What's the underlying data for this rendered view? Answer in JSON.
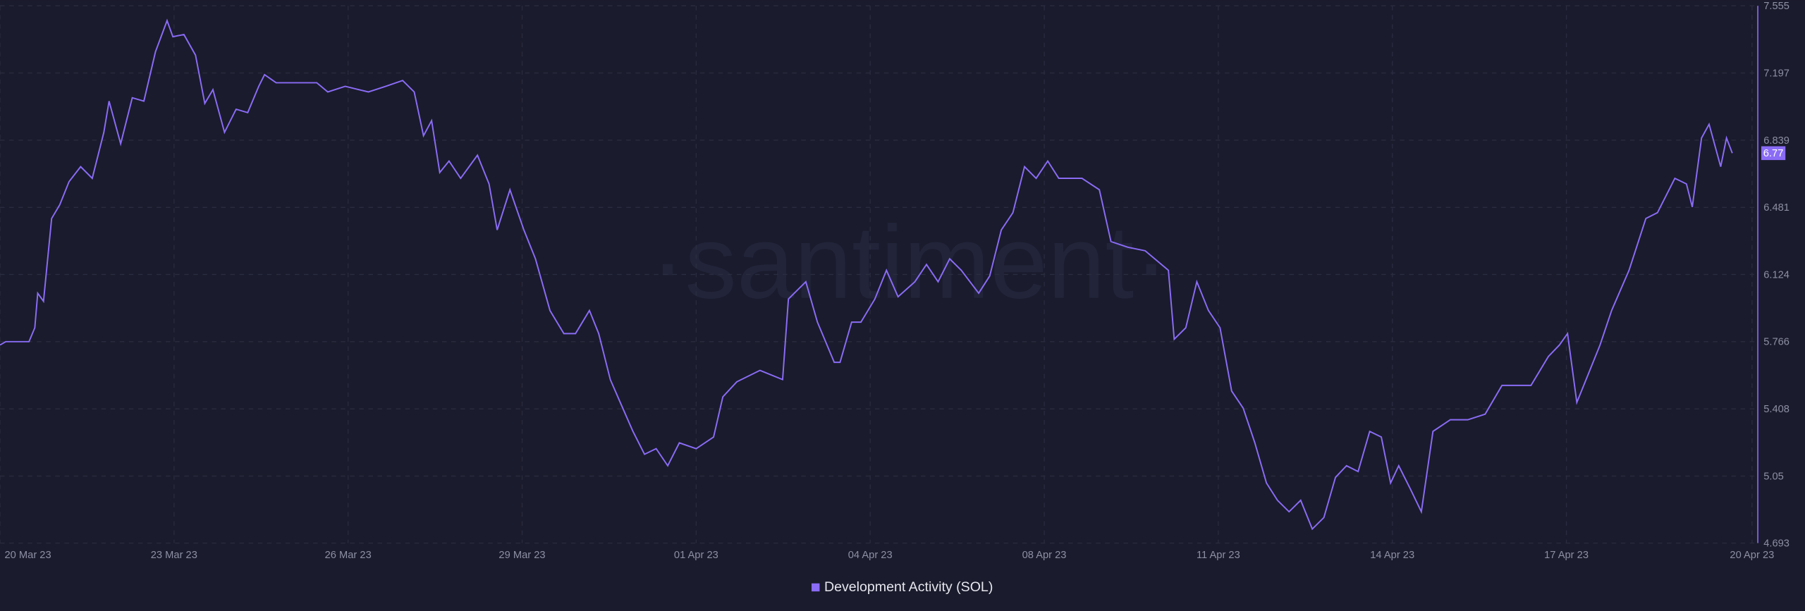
{
  "chart_data": {
    "type": "line",
    "watermark": "·santiment·",
    "x": [
      0,
      0.1,
      0.5,
      0.6,
      0.65,
      0.75,
      0.89,
      1.03,
      1.19,
      1.39,
      1.59,
      1.79,
      1.88,
      2.08,
      2.28,
      2.48,
      2.68,
      2.88,
      2.98,
      3.17,
      3.37,
      3.53,
      3.67,
      3.87,
      4.07,
      4.27,
      4.46,
      4.56,
      4.76,
      4.96,
      5.26,
      5.46,
      5.65,
      5.95,
      6.35,
      6.65,
      6.94,
      7.14,
      7.3,
      7.44,
      7.58,
      7.74,
      7.94,
      8.23,
      8.43,
      8.57,
      8.79,
      9.03,
      9.23,
      9.48,
      9.72,
      9.92,
      10.16,
      10.32,
      10.52,
      10.71,
      10.91,
      11.11,
      11.31,
      11.51,
      11.71,
      12.0,
      12.3,
      12.46,
      12.7,
      13.1,
      13.49,
      13.59,
      13.89,
      14.09,
      14.38,
      14.48,
      14.68,
      14.84,
      15.08,
      15.28,
      15.48,
      15.77,
      15.97,
      16.17,
      16.37,
      16.57,
      16.87,
      17.06,
      17.26,
      17.46,
      17.66,
      17.86,
      18.06,
      18.25,
      18.65,
      18.95,
      19.15,
      19.44,
      19.74,
      20.14,
      20.24,
      20.44,
      20.63,
      20.83,
      21.03,
      21.23,
      21.43,
      21.63,
      21.83,
      22.02,
      22.22,
      22.42,
      22.62,
      22.82,
      23.02,
      23.21,
      23.41,
      23.61,
      23.81,
      23.97,
      24.11,
      24.31,
      24.5,
      24.7,
      25.0,
      25.3,
      25.6,
      25.89,
      26.39,
      26.69,
      26.88,
      27.02,
      27.18,
      27.38,
      27.58,
      27.78,
      28.08,
      28.37,
      28.57,
      28.87,
      29.07,
      29.17,
      29.33,
      29.46,
      29.66,
      29.76,
      29.86
    ],
    "series": [
      {
        "name": "Development Activity (SOL)",
        "color": "#8a6cf6",
        "values": [
          5.748,
          5.766,
          5.766,
          5.84,
          6.024,
          5.981,
          6.422,
          6.495,
          6.618,
          6.698,
          6.636,
          6.881,
          7.047,
          6.82,
          7.065,
          7.047,
          7.31,
          7.476,
          7.39,
          7.402,
          7.292,
          7.035,
          7.108,
          6.881,
          7.004,
          6.986,
          7.126,
          7.188,
          7.145,
          7.145,
          7.145,
          7.145,
          7.096,
          7.126,
          7.096,
          7.126,
          7.157,
          7.096,
          6.863,
          6.943,
          6.667,
          6.728,
          6.636,
          6.759,
          6.606,
          6.361,
          6.575,
          6.361,
          6.207,
          5.932,
          5.809,
          5.809,
          5.932,
          5.809,
          5.564,
          5.429,
          5.288,
          5.166,
          5.196,
          5.105,
          5.227,
          5.196,
          5.258,
          5.472,
          5.552,
          5.613,
          5.564,
          5.993,
          6.085,
          5.87,
          5.656,
          5.656,
          5.87,
          5.87,
          5.993,
          6.146,
          6.005,
          6.085,
          6.177,
          6.085,
          6.207,
          6.146,
          6.024,
          6.116,
          6.361,
          6.453,
          6.698,
          6.636,
          6.728,
          6.636,
          6.636,
          6.575,
          6.299,
          6.269,
          6.25,
          6.146,
          5.779,
          5.84,
          6.085,
          5.932,
          5.84,
          5.503,
          5.411,
          5.227,
          5.013,
          4.921,
          4.86,
          4.921,
          4.768,
          4.829,
          5.043,
          5.105,
          5.074,
          5.288,
          5.258,
          5.013,
          5.105,
          4.982,
          4.86,
          5.288,
          5.35,
          5.35,
          5.38,
          5.533,
          5.533,
          5.687,
          5.748,
          5.809,
          5.442,
          5.595,
          5.748,
          5.932,
          6.146,
          6.422,
          6.453,
          6.636,
          6.606,
          6.483,
          6.851,
          6.924,
          6.698,
          6.851,
          6.77
        ]
      }
    ],
    "last_value_label": "6.77",
    "xlim": [
      0,
      30.26
    ],
    "xticks": [
      {
        "value": 0,
        "label": "20 Mar 23"
      },
      {
        "value": 3,
        "label": "23 Mar 23"
      },
      {
        "value": 6,
        "label": "26 Mar 23"
      },
      {
        "value": 9,
        "label": "29 Mar 23"
      },
      {
        "value": 12,
        "label": "01 Apr 23"
      },
      {
        "value": 15,
        "label": "04 Apr 23"
      },
      {
        "value": 18,
        "label": "08 Apr 23"
      },
      {
        "value": 21,
        "label": "11 Apr 23"
      },
      {
        "value": 24,
        "label": "14 Apr 23"
      },
      {
        "value": 27,
        "label": "17 Apr 23"
      },
      {
        "value": 30.2,
        "label": "20 Apr 23"
      }
    ],
    "ylim": [
      4.693,
      7.555
    ],
    "yticks": [
      4.693,
      5.05,
      5.408,
      5.766,
      6.124,
      6.481,
      6.839,
      7.197,
      7.555
    ],
    "grid": true
  }
}
